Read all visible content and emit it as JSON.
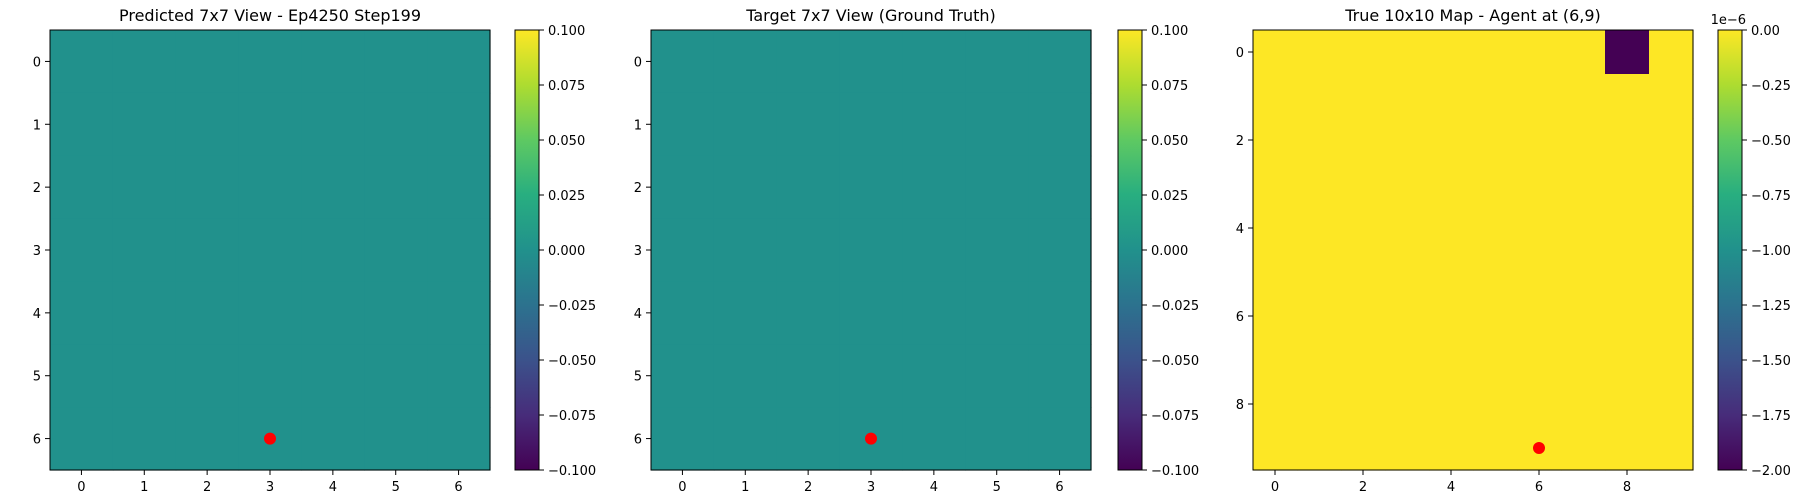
{
  "figure": {
    "background": "#ffffff"
  },
  "chart_data": [
    {
      "type": "heatmap",
      "title": "Predicted 7x7 View - Ep4250 Step199",
      "grid": {
        "rows": 7,
        "cols": 7
      },
      "xticks": [
        0,
        1,
        2,
        3,
        4,
        5,
        6
      ],
      "yticks": [
        0,
        1,
        2,
        3,
        4,
        5,
        6
      ],
      "xlim": [
        -0.5,
        6.5
      ],
      "ylim": [
        6.5,
        -0.5
      ],
      "values": "all cells 0.0",
      "fill_value": 0.0,
      "cells": [],
      "colormap": "viridis",
      "cell_color": "#21918c",
      "colorbar": {
        "range": [
          -0.1,
          0.1
        ],
        "ticks": [
          -0.1,
          -0.075,
          -0.05,
          -0.025,
          0.0,
          0.025,
          0.05,
          0.075,
          0.1
        ],
        "tick_labels": [
          "−0.100",
          "−0.075",
          "−0.050",
          "−0.025",
          "0.000",
          "0.025",
          "0.050",
          "0.075",
          "0.100"
        ],
        "exponent_label": ""
      },
      "marker": {
        "x": 3,
        "y": 6,
        "color": "#ff0000",
        "shape": "circle"
      },
      "grid_lines": false
    },
    {
      "type": "heatmap",
      "title": "Target 7x7 View (Ground Truth)",
      "grid": {
        "rows": 7,
        "cols": 7
      },
      "xticks": [
        0,
        1,
        2,
        3,
        4,
        5,
        6
      ],
      "yticks": [
        0,
        1,
        2,
        3,
        4,
        5,
        6
      ],
      "xlim": [
        -0.5,
        6.5
      ],
      "ylim": [
        6.5,
        -0.5
      ],
      "values": "all cells 0.0",
      "fill_value": 0.0,
      "cells": [],
      "colormap": "viridis",
      "cell_color": "#21918c",
      "colorbar": {
        "range": [
          -0.1,
          0.1
        ],
        "ticks": [
          -0.1,
          -0.075,
          -0.05,
          -0.025,
          0.0,
          0.025,
          0.05,
          0.075,
          0.1
        ],
        "tick_labels": [
          "−0.100",
          "−0.075",
          "−0.050",
          "−0.025",
          "0.000",
          "0.025",
          "0.050",
          "0.075",
          "0.100"
        ],
        "exponent_label": ""
      },
      "marker": {
        "x": 3,
        "y": 6,
        "color": "#ff0000",
        "shape": "circle"
      },
      "grid_lines": false
    },
    {
      "type": "heatmap",
      "title": "True 10x10 Map - Agent at (6,9)",
      "grid": {
        "rows": 10,
        "cols": 10
      },
      "xticks": [
        0,
        2,
        4,
        6,
        8
      ],
      "yticks": [
        0,
        2,
        4,
        6,
        8
      ],
      "xlim": [
        -0.5,
        9.5
      ],
      "ylim": [
        9.5,
        -0.5
      ],
      "values": "all cells 0.0 except (x=8, y=0) = -2e-6",
      "fill_value": 0.0,
      "cells": [
        {
          "x": 8,
          "y": 0,
          "value": -2e-06,
          "color": "#440154"
        }
      ],
      "colormap": "viridis",
      "cell_color": "#fde725",
      "colorbar": {
        "range": [
          -2e-06,
          0.0
        ],
        "ticks": [
          -2e-06,
          -1.75e-06,
          -1.5e-06,
          -1.25e-06,
          -1e-06,
          -7.5e-07,
          -5e-07,
          -2.5e-07,
          0.0
        ],
        "tick_labels": [
          "−2.00",
          "−1.75",
          "−1.50",
          "−1.25",
          "−1.00",
          "−0.75",
          "−0.50",
          "−0.25",
          "0.00"
        ],
        "exponent_label": "1e−6"
      },
      "marker": {
        "x": 6,
        "y": 9,
        "color": "#ff0000",
        "shape": "circle"
      },
      "grid_lines": false
    }
  ]
}
